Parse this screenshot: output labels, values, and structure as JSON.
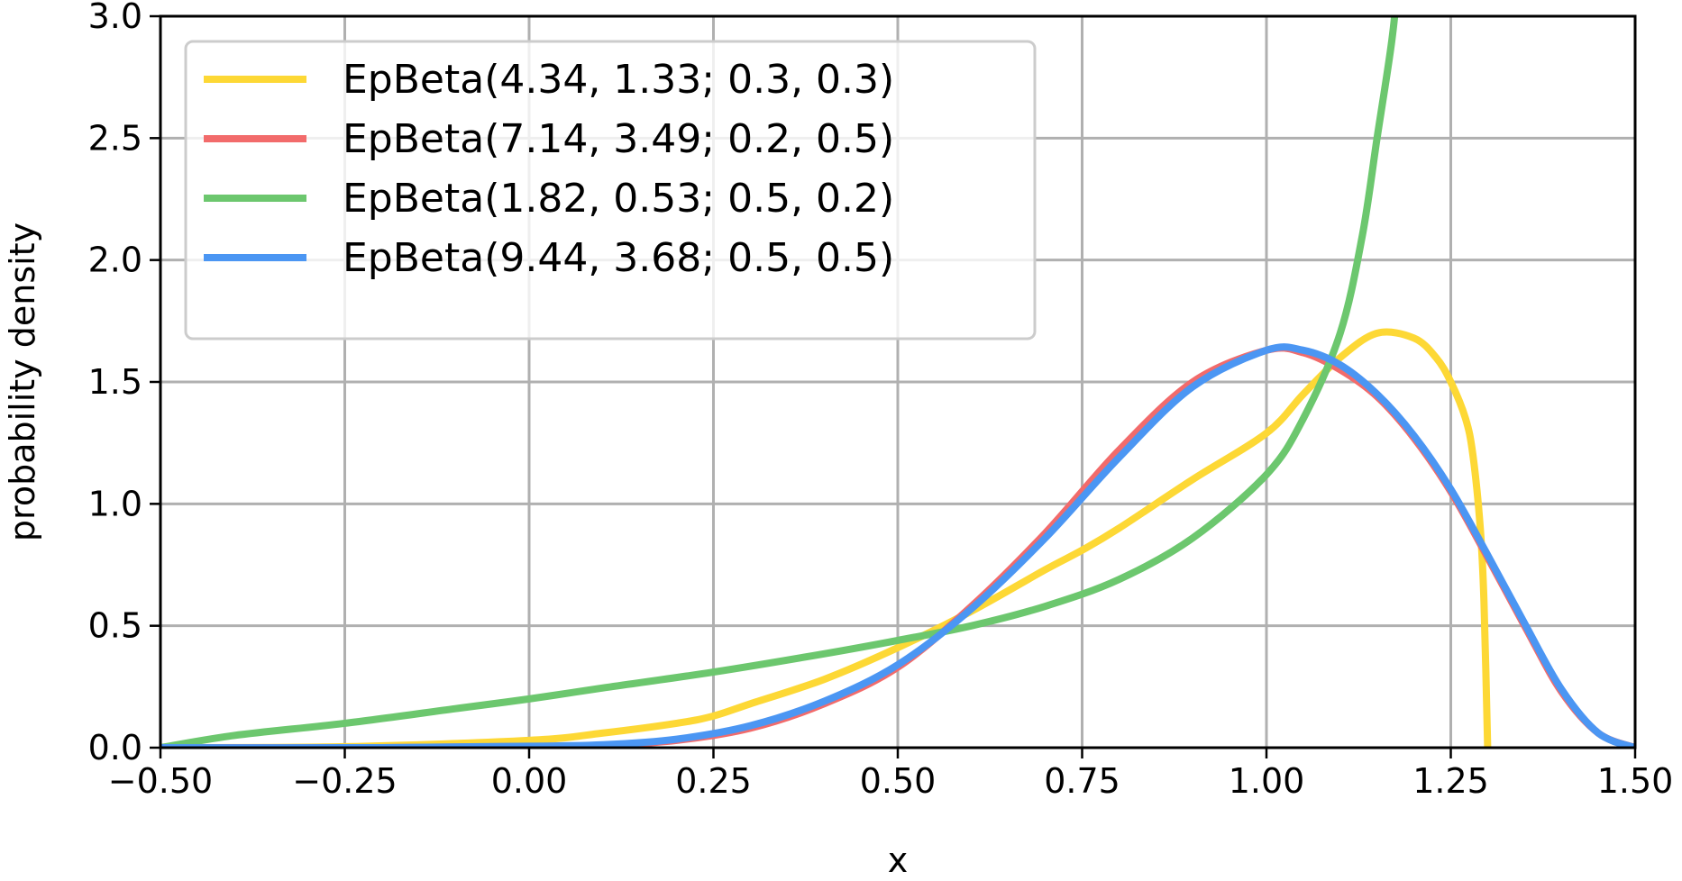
{
  "chart_data": {
    "type": "line",
    "xlabel": "x",
    "ylabel": "probability density",
    "xlim": [
      -0.5,
      1.5
    ],
    "ylim": [
      0.0,
      3.0
    ],
    "grid": true,
    "legend_position": "top-left",
    "xticks": [
      -0.5,
      -0.25,
      0.0,
      0.25,
      0.5,
      0.75,
      1.0,
      1.25,
      1.5
    ],
    "xtick_labels": [
      "−0.50",
      "−0.25",
      "0.00",
      "0.25",
      "0.50",
      "0.75",
      "1.00",
      "1.25",
      "1.50"
    ],
    "yticks": [
      0.0,
      0.5,
      1.0,
      1.5,
      2.0,
      2.5,
      3.0
    ],
    "ytick_labels": [
      "0.0",
      "0.5",
      "1.0",
      "1.5",
      "2.0",
      "2.5",
      "3.0"
    ],
    "series": [
      {
        "name": "EpBeta(4.34, 1.33; 0.3, 0.3)",
        "color": "#fdd835",
        "x": [
          -0.5,
          -0.25,
          0.0,
          0.1,
          0.2,
          0.25,
          0.3,
          0.4,
          0.5,
          0.6,
          0.7,
          0.75,
          0.8,
          0.9,
          1.0,
          1.05,
          1.1,
          1.15,
          1.2,
          1.23,
          1.25,
          1.27,
          1.28,
          1.29,
          1.295,
          1.3
        ],
        "y": [
          0.0,
          0.004,
          0.03,
          0.06,
          0.1,
          0.13,
          0.18,
          0.28,
          0.41,
          0.56,
          0.73,
          0.81,
          0.9,
          1.1,
          1.29,
          1.45,
          1.6,
          1.7,
          1.68,
          1.6,
          1.5,
          1.35,
          1.2,
          0.9,
          0.6,
          0.0
        ]
      },
      {
        "name": "EpBeta(7.14, 3.49; 0.2, 0.5)",
        "color": "#f26b6b",
        "x": [
          -0.5,
          -0.2,
          0.0,
          0.1,
          0.2,
          0.3,
          0.4,
          0.5,
          0.6,
          0.7,
          0.8,
          0.9,
          1.0,
          1.05,
          1.1,
          1.15,
          1.2,
          1.25,
          1.3,
          1.35,
          1.4,
          1.45,
          1.5
        ],
        "y": [
          0.0,
          0.0,
          0.005,
          0.01,
          0.03,
          0.08,
          0.18,
          0.33,
          0.58,
          0.88,
          1.22,
          1.5,
          1.63,
          1.62,
          1.55,
          1.44,
          1.27,
          1.05,
          0.78,
          0.5,
          0.23,
          0.06,
          0.0
        ]
      },
      {
        "name": "EpBeta(1.82, 0.53; 0.5, 0.2)",
        "color": "#6cc76e",
        "x": [
          -0.5,
          -0.4,
          -0.25,
          -0.1,
          0.0,
          0.1,
          0.25,
          0.4,
          0.5,
          0.6,
          0.7,
          0.8,
          0.9,
          1.0,
          1.05,
          1.1,
          1.13,
          1.15,
          1.17,
          1.18,
          1.19
        ],
        "y": [
          0.0,
          0.05,
          0.1,
          0.16,
          0.2,
          0.245,
          0.31,
          0.385,
          0.44,
          0.5,
          0.58,
          0.69,
          0.86,
          1.12,
          1.35,
          1.7,
          2.1,
          2.5,
          2.9,
          3.2,
          3.6
        ]
      },
      {
        "name": "EpBeta(9.44, 3.68; 0.5, 0.5)",
        "color": "#4b96f3",
        "x": [
          -0.5,
          -0.2,
          0.0,
          0.1,
          0.2,
          0.3,
          0.4,
          0.5,
          0.6,
          0.7,
          0.8,
          0.9,
          1.0,
          1.05,
          1.1,
          1.15,
          1.2,
          1.25,
          1.3,
          1.35,
          1.4,
          1.45,
          1.5
        ],
        "y": [
          0.0,
          0.0,
          0.006,
          0.012,
          0.035,
          0.09,
          0.19,
          0.34,
          0.57,
          0.86,
          1.19,
          1.48,
          1.63,
          1.63,
          1.57,
          1.45,
          1.28,
          1.06,
          0.79,
          0.51,
          0.24,
          0.06,
          0.0
        ]
      }
    ]
  }
}
